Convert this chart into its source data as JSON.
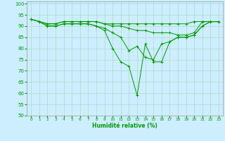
{
  "xlabel": "Humidité relative (%)",
  "background_color": "#cceeff",
  "grid_color": "#b0d8c8",
  "line_color": "#009900",
  "xlim": [
    -0.5,
    23.5
  ],
  "ylim": [
    50,
    101
  ],
  "yticks": [
    50,
    55,
    60,
    65,
    70,
    75,
    80,
    85,
    90,
    95,
    100
  ],
  "xticks": [
    0,
    1,
    2,
    3,
    4,
    5,
    6,
    7,
    8,
    9,
    10,
    11,
    12,
    13,
    14,
    15,
    16,
    17,
    18,
    19,
    20,
    21,
    22,
    23
  ],
  "series": [
    [
      93,
      92,
      91,
      91,
      92,
      92,
      92,
      92,
      92,
      91,
      91,
      91,
      91,
      91,
      91,
      91,
      91,
      91,
      91,
      91,
      92,
      92,
      92,
      92
    ],
    [
      93,
      92,
      91,
      91,
      92,
      92,
      92,
      92,
      92,
      91,
      90,
      90,
      89,
      88,
      88,
      87,
      87,
      87,
      86,
      86,
      87,
      92,
      92,
      92
    ],
    [
      93,
      92,
      90,
      90,
      91,
      91,
      91,
      91,
      90,
      89,
      87,
      85,
      79,
      81,
      76,
      75,
      82,
      83,
      85,
      85,
      86,
      90,
      92,
      92
    ],
    [
      93,
      92,
      90,
      90,
      91,
      91,
      91,
      91,
      90,
      88,
      80,
      74,
      72,
      59,
      82,
      74,
      74,
      83,
      85,
      85,
      86,
      90,
      92,
      92
    ]
  ]
}
